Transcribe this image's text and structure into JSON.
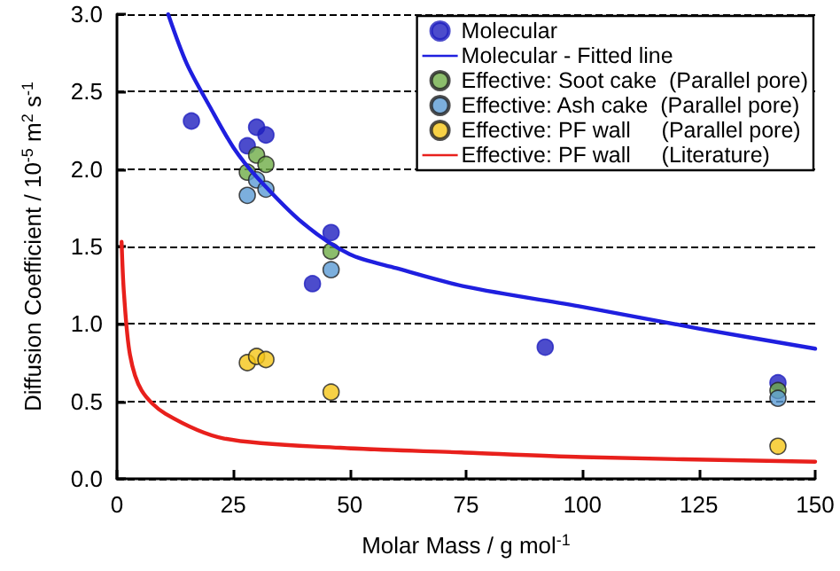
{
  "chart_data": {
    "type": "scatter",
    "xlabel": "Molar Mass / g mol$^{-1}$",
    "ylabel": "Diffusion Coefficient / 10$^{-5}$ m$^{2}$ s$^{-1}$",
    "xlim": [
      0,
      150
    ],
    "xticks": [
      0,
      25,
      50,
      75,
      100,
      125,
      150
    ],
    "ylim": [
      0,
      3
    ],
    "yticks": [
      {
        "value": 0,
        "label": "0.0"
      },
      {
        "value": 0.5,
        "label": "0.5"
      },
      {
        "value": 1,
        "label": "1.0"
      },
      {
        "value": 1.5,
        "label": "1.5"
      },
      {
        "value": 2,
        "label": "2.0"
      },
      {
        "value": 2.5,
        "label": "2.5"
      },
      {
        "value": 3,
        "label": "3.0"
      }
    ],
    "grid": "y",
    "legend": "top right",
    "marker": "circle",
    "series": [
      {
        "name": "Molecular",
        "color": "#1f1fbf",
        "x": [
          16,
          28,
          30,
          32,
          42,
          46,
          92,
          142
        ],
        "values": [
          2.31,
          2.15,
          2.27,
          2.22,
          1.26,
          1.59,
          0.85,
          0.62
        ]
      },
      {
        "name": "Molecular - Fitted line",
        "type": "line",
        "color": "#1f1fdf",
        "marker": "none",
        "x": [
          11,
          15,
          20,
          25,
          30,
          40,
          50,
          60,
          75,
          100,
          125,
          150
        ],
        "values": [
          3.0,
          2.68,
          2.4,
          2.14,
          1.95,
          1.65,
          1.45,
          1.36,
          1.24,
          1.11,
          0.97,
          0.84
        ]
      },
      {
        "name": "Effective: Soot cake  (Parallel pore)",
        "color": "#6fad47",
        "x": [
          28,
          30,
          32,
          46,
          142
        ],
        "values": [
          1.98,
          2.09,
          2.03,
          1.47,
          0.57
        ]
      },
      {
        "name": "Effective: Ash cake  (Parallel pore)",
        "color": "#5b9bd5",
        "x": [
          28,
          30,
          32,
          46,
          142
        ],
        "values": [
          1.83,
          1.93,
          1.87,
          1.35,
          0.52
        ]
      },
      {
        "name": "Effective: PF wall     (Parallel pore)",
        "color": "#f5c518",
        "x": [
          28,
          30,
          32,
          46,
          142
        ],
        "values": [
          0.75,
          0.79,
          0.77,
          0.56,
          0.21
        ]
      },
      {
        "name": "Effective: PF wall     (Literature)",
        "type": "line",
        "color": "#e8201c",
        "marker": "none",
        "x": [
          1,
          1.5,
          2.8,
          5.3,
          10.4,
          23,
          48,
          74,
          100,
          150
        ],
        "values": [
          1.53,
          1.2,
          0.8,
          0.57,
          0.42,
          0.26,
          0.2,
          0.17,
          0.14,
          0.11
        ]
      }
    ]
  }
}
